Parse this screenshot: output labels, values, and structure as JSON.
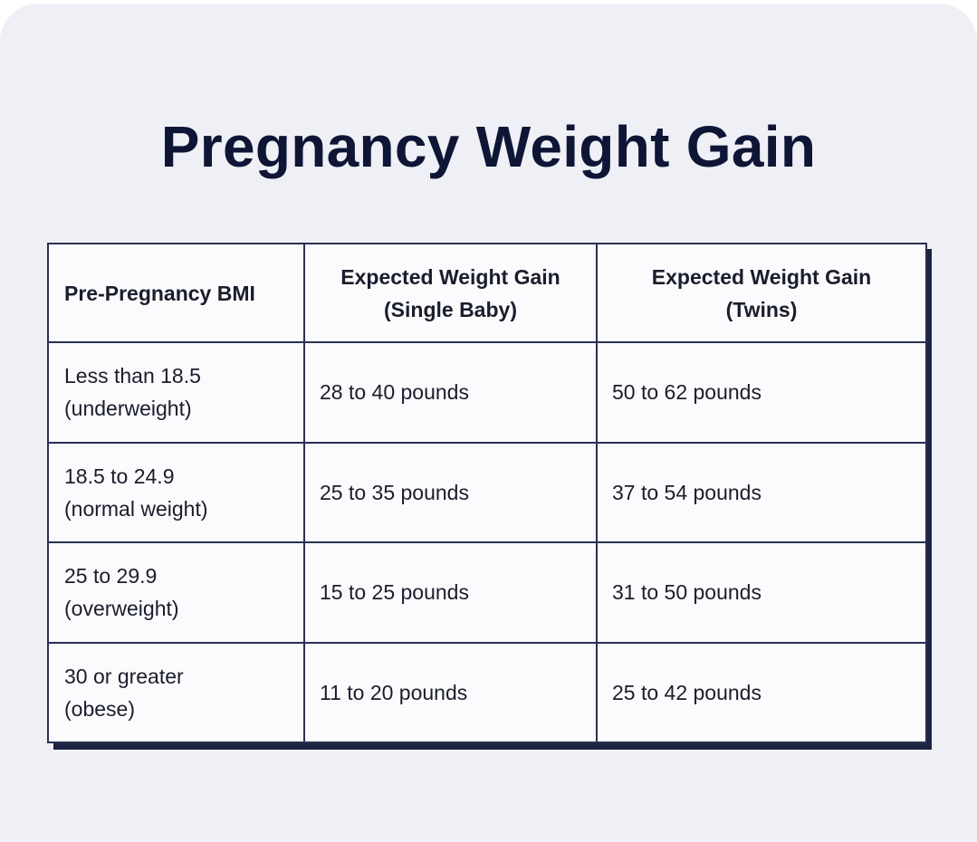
{
  "title": "Pregnancy Weight Gain",
  "table": {
    "headers": [
      {
        "line1": "Pre-Pregnancy BMI",
        "line2": ""
      },
      {
        "line1": "Expected Weight Gain",
        "line2": "(Single Baby)"
      },
      {
        "line1": "Expected Weight Gain",
        "line2": "(Twins)"
      }
    ],
    "rows": [
      {
        "bmi_line1": "Less than 18.5",
        "bmi_line2": "(underweight)",
        "single": "28 to 40 pounds",
        "twins": "50 to 62 pounds"
      },
      {
        "bmi_line1": "18.5 to 24.9",
        "bmi_line2": "(normal weight)",
        "single": "25 to 35 pounds",
        "twins": "37 to 54 pounds"
      },
      {
        "bmi_line1": "25 to 29.9",
        "bmi_line2": "(overweight)",
        "single": "15 to 25 pounds",
        "twins": "31 to 50 pounds"
      },
      {
        "bmi_line1": "30 or greater",
        "bmi_line2": "(obese)",
        "single": "11 to 20 pounds",
        "twins": "25 to 42 pounds"
      }
    ]
  }
}
